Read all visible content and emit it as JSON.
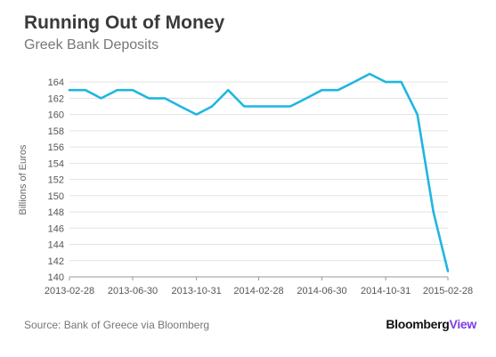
{
  "chart_data": {
    "type": "line",
    "title": "Running Out of Money",
    "subtitle": "Greek Bank Deposits",
    "xlabel": "",
    "ylabel": "Billions of Euros",
    "ylim": [
      140,
      165
    ],
    "yticks": [
      140,
      142,
      144,
      146,
      148,
      150,
      152,
      154,
      156,
      158,
      160,
      162,
      164
    ],
    "xticks": [
      "2013-02-28",
      "2013-06-30",
      "2013-10-31",
      "2014-02-28",
      "2014-06-30",
      "2014-10-31",
      "2015-02-28"
    ],
    "grid": "horizontal",
    "line_color": "#1fb6e0",
    "series": [
      {
        "x": [
          "2013-02-28",
          "2013-03-31",
          "2013-04-30",
          "2013-05-31",
          "2013-06-30",
          "2013-07-31",
          "2013-08-31",
          "2013-09-30",
          "2013-10-31",
          "2013-11-30",
          "2013-12-31",
          "2014-01-31",
          "2014-02-28",
          "2014-03-31",
          "2014-04-30",
          "2014-05-31",
          "2014-06-30",
          "2014-07-31",
          "2014-08-31",
          "2014-09-30",
          "2014-10-31",
          "2014-11-30",
          "2014-12-31",
          "2015-01-31",
          "2015-02-28"
        ],
        "values": [
          163,
          163,
          162,
          163,
          163,
          162,
          162,
          161,
          160,
          161,
          163,
          161,
          161,
          161,
          161,
          162,
          163,
          163,
          164,
          165,
          164,
          164,
          160,
          148,
          140.7
        ]
      }
    ]
  },
  "footer": {
    "source": "Source: Bank of Greece via Bloomberg",
    "brand_bold": "Bloomberg",
    "brand_accent": "View"
  }
}
